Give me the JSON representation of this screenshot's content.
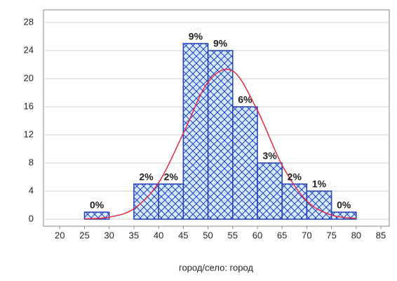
{
  "chart_data": {
    "type": "histogram",
    "x_label": "город/село: город",
    "bins": [
      25,
      30,
      35,
      40,
      45,
      50,
      55,
      60,
      65,
      70,
      75,
      80
    ],
    "counts": [
      1,
      0,
      5,
      5,
      25,
      24,
      16,
      8,
      5,
      4,
      1
    ],
    "value_labels": [
      "0%",
      null,
      "2%",
      "2%",
      "9%",
      "9%",
      "6%",
      "3%",
      "2%",
      "1%",
      "0%"
    ],
    "color": "#1f3fbf",
    "fit": {
      "color": "#e8283c",
      "x": [
        25,
        30,
        35,
        40,
        45,
        50,
        55,
        60,
        65,
        70,
        75,
        80
      ],
      "values": [
        0.04,
        0.29,
        1.49,
        5.19,
        12.2,
        19.5,
        21.1,
        15.5,
        7.7,
        2.6,
        0.58,
        0.09
      ]
    },
    "xlim": [
      16.7,
      86.7
    ],
    "xticks": [
      20,
      25,
      30,
      35,
      40,
      45,
      50,
      55,
      60,
      65,
      70,
      75,
      80,
      85
    ],
    "ylim": [
      -1,
      29.8
    ],
    "yticks": [
      0,
      4,
      8,
      12,
      16,
      20,
      24,
      28
    ],
    "grid": true
  }
}
